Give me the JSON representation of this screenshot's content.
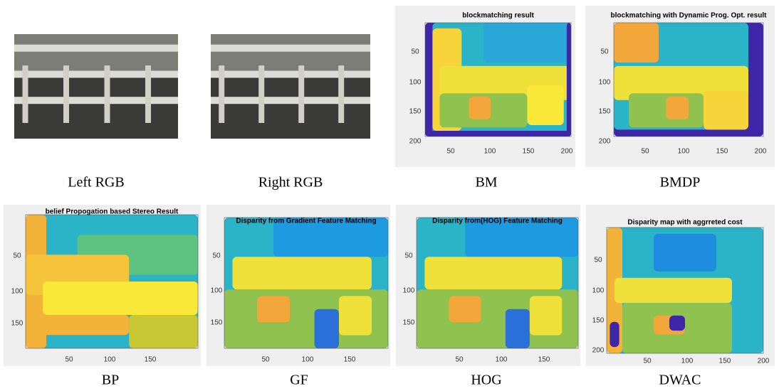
{
  "panels": [
    {
      "caption": "Left RGB"
    },
    {
      "caption": "Right RGB"
    },
    {
      "caption": "BM",
      "title": "blockmatching result",
      "yticks": [
        50,
        100,
        150,
        200
      ],
      "xticks": [
        50,
        100,
        150,
        200
      ]
    },
    {
      "caption": "BMDP",
      "title": "blockmatching with Dynamic Prog. Opt. result",
      "yticks": [
        50,
        100,
        150,
        200
      ],
      "xticks": [
        50,
        100,
        150,
        200
      ]
    },
    {
      "caption": "BP",
      "title": "belief Propogation based Stereo Result",
      "yticks": [
        50,
        100,
        150
      ],
      "xticks": [
        50,
        100,
        150
      ]
    },
    {
      "caption": "GF",
      "title": "Disparity from Gradient Feature Matching",
      "yticks": [
        50,
        100,
        150
      ],
      "xticks": [
        50,
        100,
        150
      ]
    },
    {
      "caption": "HOG",
      "title": "Disparity from(HOG) Feature Matching",
      "yticks": [
        50,
        100,
        150
      ],
      "xticks": [
        50,
        100,
        150
      ]
    },
    {
      "caption": "DWAC",
      "title": "Disparity map with aggrreted cost",
      "yticks": [
        50,
        100,
        150,
        200
      ],
      "xticks": [
        50,
        100,
        150,
        200
      ]
    }
  ]
}
